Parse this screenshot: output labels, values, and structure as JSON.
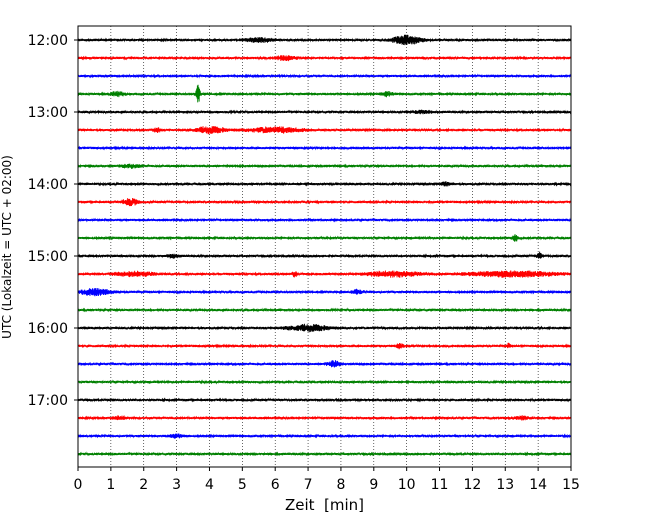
{
  "chart_data": {
    "type": "line",
    "subtype": "helicorder",
    "title": "",
    "xlabel": "Zeit  [min]",
    "ylabel": "UTC (Lokalzeit = UTC + 02:00)",
    "xlim": [
      0,
      15
    ],
    "x_ticks": [
      0,
      1,
      2,
      3,
      4,
      5,
      6,
      7,
      8,
      9,
      10,
      11,
      12,
      13,
      14,
      15
    ],
    "x_tick_labels": [
      "0",
      "1",
      "2",
      "3",
      "4",
      "5",
      "6",
      "7",
      "8",
      "9",
      "10",
      "11",
      "12",
      "13",
      "14",
      "15"
    ],
    "y_tick_labels": [
      "12:00",
      "13:00",
      "14:00",
      "15:00",
      "16:00",
      "17:00"
    ],
    "grid": "vertical-dotted",
    "trace_colors": [
      "#000000",
      "#ff0000",
      "#0000ff",
      "#008000"
    ],
    "traces": [
      {
        "start": "12:00",
        "color": "#000000",
        "events": [
          {
            "t": 5.5,
            "amp": 2,
            "dur": 0.8
          },
          {
            "t": 10.0,
            "amp": 4.5,
            "dur": 0.8
          }
        ]
      },
      {
        "start": "12:15",
        "color": "#ff0000",
        "events": [
          {
            "t": 6.3,
            "amp": 2,
            "dur": 0.6
          }
        ]
      },
      {
        "start": "12:30",
        "color": "#0000ff",
        "events": []
      },
      {
        "start": "12:45",
        "color": "#008000",
        "events": [
          {
            "t": 1.2,
            "amp": 2,
            "dur": 0.4
          },
          {
            "t": 3.65,
            "amp": 9,
            "dur": 0.12
          },
          {
            "t": 9.4,
            "amp": 2,
            "dur": 0.3
          }
        ]
      },
      {
        "start": "13:00",
        "color": "#000000",
        "events": [
          {
            "t": 10.5,
            "amp": 1.5,
            "dur": 0.5
          }
        ]
      },
      {
        "start": "13:15",
        "color": "#ff0000",
        "events": [
          {
            "t": 2.4,
            "amp": 2,
            "dur": 0.2
          },
          {
            "t": 4.0,
            "amp": 3,
            "dur": 0.9
          },
          {
            "t": 6.0,
            "amp": 2.5,
            "dur": 1.5
          }
        ]
      },
      {
        "start": "13:30",
        "color": "#0000ff",
        "events": []
      },
      {
        "start": "13:45",
        "color": "#008000",
        "events": [
          {
            "t": 1.6,
            "amp": 1.5,
            "dur": 0.6
          }
        ]
      },
      {
        "start": "14:00",
        "color": "#000000",
        "events": [
          {
            "t": 11.2,
            "amp": 1.5,
            "dur": 0.3
          }
        ]
      },
      {
        "start": "14:15",
        "color": "#ff0000",
        "events": [
          {
            "t": 1.6,
            "amp": 3,
            "dur": 0.5
          }
        ]
      },
      {
        "start": "14:30",
        "color": "#0000ff",
        "events": []
      },
      {
        "start": "14:45",
        "color": "#008000",
        "events": [
          {
            "t": 13.3,
            "amp": 3.5,
            "dur": 0.15
          }
        ]
      },
      {
        "start": "15:00",
        "color": "#000000",
        "events": [
          {
            "t": 2.9,
            "amp": 2,
            "dur": 0.3
          },
          {
            "t": 14.05,
            "amp": 3,
            "dur": 0.15
          }
        ]
      },
      {
        "start": "15:15",
        "color": "#ff0000",
        "events": [
          {
            "t": 1.7,
            "amp": 2,
            "dur": 1.2
          },
          {
            "t": 6.6,
            "amp": 2.5,
            "dur": 0.15
          },
          {
            "t": 9.6,
            "amp": 2.5,
            "dur": 1.6
          },
          {
            "t": 13.2,
            "amp": 2.5,
            "dur": 2.6
          }
        ]
      },
      {
        "start": "15:30",
        "color": "#0000ff",
        "events": [
          {
            "t": 0.5,
            "amp": 3,
            "dur": 0.9
          },
          {
            "t": 8.5,
            "amp": 2,
            "dur": 0.3
          }
        ]
      },
      {
        "start": "15:45",
        "color": "#008000",
        "events": []
      },
      {
        "start": "16:00",
        "color": "#000000",
        "events": [
          {
            "t": 7.0,
            "amp": 3,
            "dur": 1.2
          }
        ]
      },
      {
        "start": "16:15",
        "color": "#ff0000",
        "events": [
          {
            "t": 9.8,
            "amp": 2,
            "dur": 0.2
          },
          {
            "t": 13.1,
            "amp": 2,
            "dur": 0.1
          }
        ]
      },
      {
        "start": "16:30",
        "color": "#0000ff",
        "events": [
          {
            "t": 7.8,
            "amp": 3,
            "dur": 0.4
          }
        ]
      },
      {
        "start": "16:45",
        "color": "#008000",
        "events": []
      },
      {
        "start": "17:00",
        "color": "#000000",
        "events": []
      },
      {
        "start": "17:15",
        "color": "#ff0000",
        "events": [
          {
            "t": 1.3,
            "amp": 1.5,
            "dur": 0.4
          },
          {
            "t": 13.5,
            "amp": 1.5,
            "dur": 0.4
          }
        ]
      },
      {
        "start": "17:30",
        "color": "#0000ff",
        "events": [
          {
            "t": 3.0,
            "amp": 1.5,
            "dur": 0.4
          }
        ]
      },
      {
        "start": "17:45",
        "color": "#008000",
        "events": []
      }
    ]
  }
}
